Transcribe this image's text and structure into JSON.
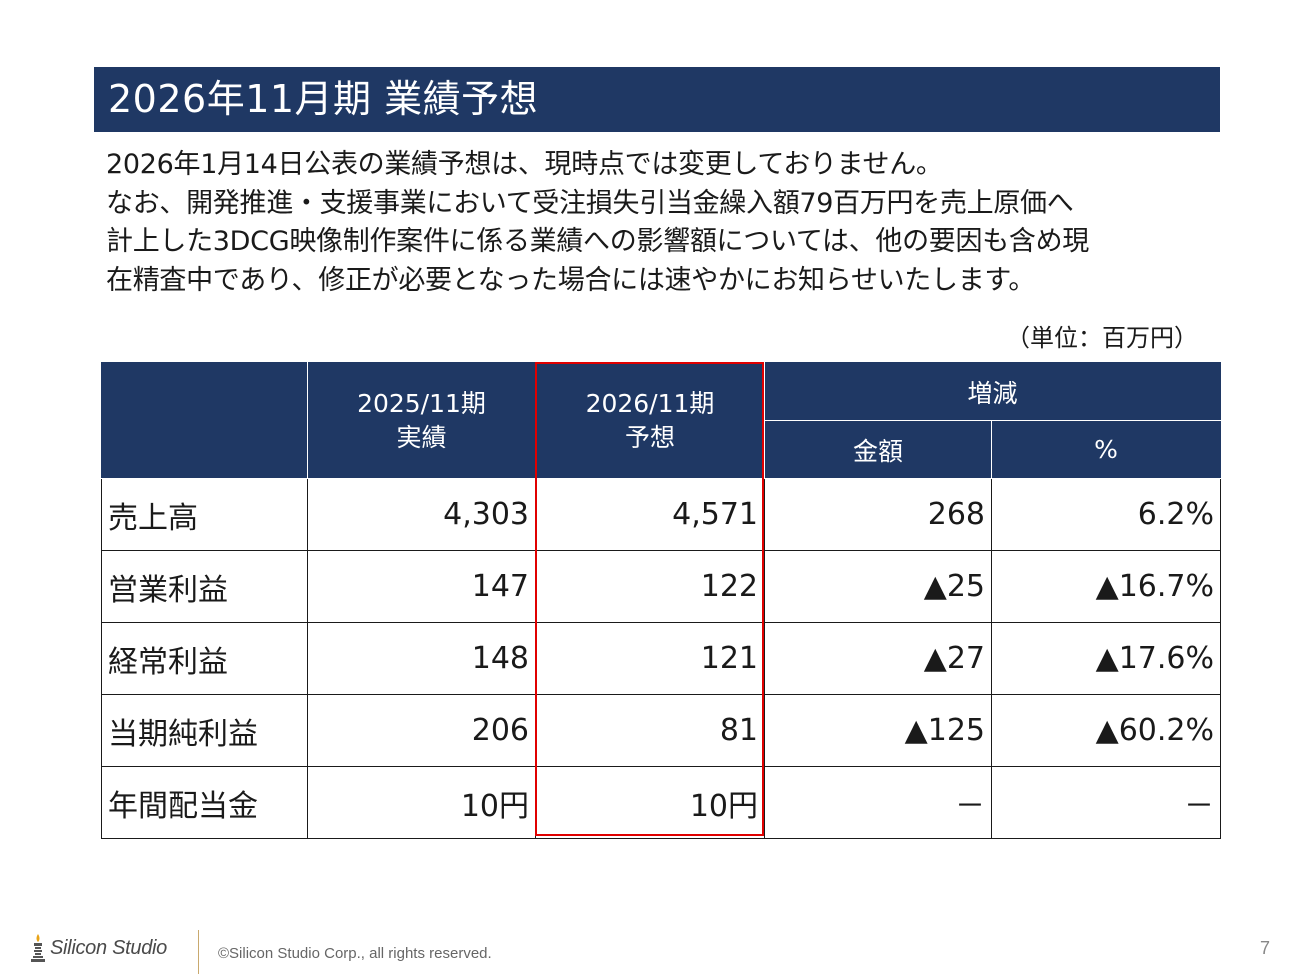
{
  "title": "2026年11月期 業績予想",
  "description": [
    "2026年1月14日公表の業績予想は、現時点では変更しておりません。",
    "なお、開発推進・支援事業において受注損失引当金繰入額79百万円を売上原価へ",
    "計上した3DCG映像制作案件に係る業績への影響額については、他の要因も含め現",
    "在精査中であり、修正が必要となった場合には速やかにお知らせいたします。"
  ],
  "unit": "（単位：百万円）",
  "table": {
    "headers": {
      "col_prev_line1": "2025/11期",
      "col_prev_line2": "実績",
      "col_curr_line1": "2026/11期",
      "col_curr_line2": "予想",
      "col_change": "増減",
      "col_amount": "金額",
      "col_percent": "%"
    },
    "rows": [
      {
        "label": "売上高",
        "prev": "4,303",
        "curr": "4,571",
        "amount": "268",
        "percent": "6.2%"
      },
      {
        "label": "営業利益",
        "prev": "147",
        "curr": "122",
        "amount": "▲25",
        "percent": "▲16.7%"
      },
      {
        "label": "経常利益",
        "prev": "148",
        "curr": "121",
        "amount": "▲27",
        "percent": "▲17.6%"
      },
      {
        "label": "当期純利益",
        "prev": "206",
        "curr": "81",
        "amount": "▲125",
        "percent": "▲60.2%"
      },
      {
        "label": "年間配当金",
        "prev": "10円",
        "curr": "10円",
        "amount": "－",
        "percent": "－"
      }
    ]
  },
  "colors": {
    "header_bg": "#1f3864",
    "highlight_border": "#e00000"
  },
  "footer": {
    "logo_text": "Silicon Studio",
    "logo_icon": "tower-icon",
    "copyright": "©Silicon Studio Corp., all rights reserved.",
    "page_number": "7"
  }
}
